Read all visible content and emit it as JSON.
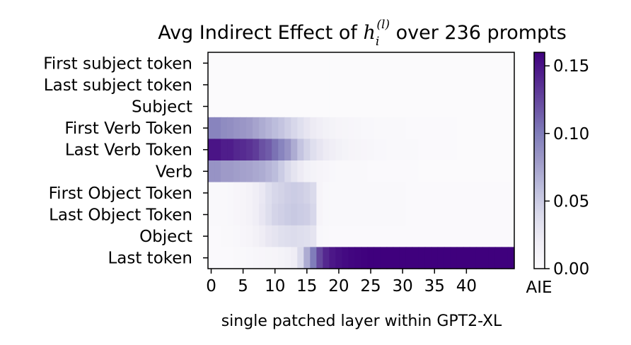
{
  "chart_data": {
    "type": "heatmap",
    "title_prefix": "Avg Indirect Effect of ",
    "title_var": "h",
    "title_sub": "i",
    "title_sup": "(l)",
    "title_suffix": " over 236 prompts",
    "xlabel": "single patched layer within GPT2-XL",
    "x_ticks": [
      0,
      5,
      10,
      15,
      20,
      25,
      30,
      35,
      40
    ],
    "x_range": [
      0,
      48
    ],
    "y_categories": [
      "First subject token",
      "Last subject token",
      "Subject",
      "First Verb Token",
      "Last Verb Token",
      "Verb",
      "First Object Token",
      "Last Object Token",
      "Object",
      "Last token"
    ],
    "colorbar": {
      "label": "AIE",
      "range": [
        0,
        0.16
      ],
      "ticks": [
        "0.00",
        "0.05",
        "0.10",
        "0.15"
      ],
      "tick_values": [
        0,
        0.05,
        0.1,
        0.15
      ],
      "colormap": "Purples",
      "color_low": "#fcfbfd",
      "color_high": "#3f007d"
    },
    "rows": [
      [
        0.002,
        0.002,
        0.002,
        0.002,
        0.002,
        0.002,
        0.002,
        0.002,
        0.002,
        0.002,
        0.002,
        0.002,
        0.002,
        0.002,
        0.002,
        0.002,
        0.002,
        0.002,
        0.002,
        0.002,
        0.002,
        0.002,
        0.002,
        0.002,
        0.002,
        0.002,
        0.002,
        0.002,
        0.002,
        0.002,
        0.002,
        0.002,
        0.002,
        0.002,
        0.002,
        0.002,
        0.002,
        0.002,
        0.002,
        0.002,
        0.002,
        0.002,
        0.002,
        0.002,
        0.002,
        0.002,
        0.002,
        0.002
      ],
      [
        0.002,
        0.002,
        0.002,
        0.002,
        0.002,
        0.002,
        0.002,
        0.002,
        0.002,
        0.002,
        0.002,
        0.002,
        0.002,
        0.002,
        0.002,
        0.002,
        0.002,
        0.002,
        0.002,
        0.002,
        0.002,
        0.002,
        0.002,
        0.002,
        0.002,
        0.002,
        0.002,
        0.002,
        0.002,
        0.002,
        0.002,
        0.002,
        0.002,
        0.002,
        0.002,
        0.002,
        0.002,
        0.002,
        0.002,
        0.002,
        0.002,
        0.002,
        0.002,
        0.002,
        0.002,
        0.002,
        0.002,
        0.002
      ],
      [
        0.002,
        0.002,
        0.002,
        0.002,
        0.002,
        0.002,
        0.002,
        0.002,
        0.002,
        0.002,
        0.002,
        0.002,
        0.002,
        0.002,
        0.002,
        0.002,
        0.002,
        0.002,
        0.002,
        0.002,
        0.002,
        0.002,
        0.002,
        0.002,
        0.002,
        0.002,
        0.002,
        0.002,
        0.002,
        0.002,
        0.002,
        0.002,
        0.002,
        0.002,
        0.002,
        0.002,
        0.002,
        0.002,
        0.002,
        0.002,
        0.002,
        0.002,
        0.002,
        0.002,
        0.002,
        0.002,
        0.002,
        0.002
      ],
      [
        0.095,
        0.095,
        0.09,
        0.088,
        0.085,
        0.083,
        0.08,
        0.075,
        0.07,
        0.065,
        0.06,
        0.055,
        0.048,
        0.042,
        0.035,
        0.028,
        0.022,
        0.018,
        0.015,
        0.012,
        0.01,
        0.009,
        0.008,
        0.007,
        0.006,
        0.006,
        0.005,
        0.005,
        0.004,
        0.004,
        0.004,
        0.003,
        0.003,
        0.003,
        0.003,
        0.003,
        0.003,
        0.003,
        0.003,
        0.002,
        0.002,
        0.002,
        0.002,
        0.002,
        0.002,
        0.002,
        0.002,
        0.002
      ],
      [
        0.15,
        0.15,
        0.145,
        0.145,
        0.14,
        0.138,
        0.135,
        0.13,
        0.12,
        0.115,
        0.105,
        0.095,
        0.085,
        0.07,
        0.055,
        0.045,
        0.035,
        0.028,
        0.022,
        0.018,
        0.015,
        0.012,
        0.01,
        0.009,
        0.008,
        0.007,
        0.006,
        0.006,
        0.005,
        0.005,
        0.004,
        0.004,
        0.004,
        0.003,
        0.003,
        0.003,
        0.003,
        0.003,
        0.003,
        0.002,
        0.002,
        0.002,
        0.002,
        0.002,
        0.002,
        0.002,
        0.002,
        0.002
      ],
      [
        0.085,
        0.085,
        0.08,
        0.08,
        0.078,
        0.076,
        0.075,
        0.072,
        0.07,
        0.065,
        0.06,
        0.05,
        0.04,
        0.03,
        0.022,
        0.015,
        0.012,
        0.01,
        0.008,
        0.006,
        0.005,
        0.005,
        0.004,
        0.004,
        0.004,
        0.003,
        0.003,
        0.003,
        0.003,
        0.003,
        0.003,
        0.003,
        0.003,
        0.002,
        0.002,
        0.002,
        0.002,
        0.002,
        0.002,
        0.002,
        0.002,
        0.002,
        0.002,
        0.002,
        0.002,
        0.002,
        0.002,
        0.002
      ],
      [
        0.004,
        0.004,
        0.005,
        0.006,
        0.008,
        0.01,
        0.013,
        0.018,
        0.025,
        0.035,
        0.042,
        0.045,
        0.048,
        0.05,
        0.048,
        0.045,
        0.04,
        0.01,
        0.006,
        0.005,
        0.005,
        0.004,
        0.004,
        0.004,
        0.004,
        0.004,
        0.004,
        0.004,
        0.004,
        0.004,
        0.004,
        0.003,
        0.003,
        0.003,
        0.003,
        0.003,
        0.003,
        0.003,
        0.003,
        0.003,
        0.003,
        0.003,
        0.003,
        0.003,
        0.003,
        0.003,
        0.003,
        0.003
      ],
      [
        0.004,
        0.004,
        0.005,
        0.006,
        0.008,
        0.01,
        0.013,
        0.018,
        0.027,
        0.036,
        0.044,
        0.047,
        0.05,
        0.052,
        0.05,
        0.048,
        0.042,
        0.01,
        0.006,
        0.005,
        0.005,
        0.004,
        0.004,
        0.004,
        0.004,
        0.004,
        0.004,
        0.004,
        0.004,
        0.004,
        0.004,
        0.003,
        0.003,
        0.003,
        0.003,
        0.003,
        0.003,
        0.003,
        0.003,
        0.003,
        0.003,
        0.003,
        0.003,
        0.003,
        0.003,
        0.003,
        0.003,
        0.003
      ],
      [
        0.003,
        0.003,
        0.004,
        0.005,
        0.006,
        0.008,
        0.01,
        0.014,
        0.02,
        0.026,
        0.03,
        0.034,
        0.036,
        0.038,
        0.036,
        0.034,
        0.03,
        0.006,
        0.004,
        0.003,
        0.003,
        0.003,
        0.003,
        0.003,
        0.003,
        0.003,
        0.003,
        0.003,
        0.003,
        0.003,
        0.003,
        0.003,
        0.003,
        0.003,
        0.003,
        0.003,
        0.003,
        0.003,
        0.003,
        0.003,
        0.003,
        0.003,
        0.003,
        0.003,
        0.003,
        0.003,
        0.003,
        0.003
      ],
      [
        0.003,
        0.003,
        0.003,
        0.003,
        0.004,
        0.005,
        0.006,
        0.007,
        0.008,
        0.009,
        0.01,
        0.012,
        0.015,
        0.02,
        0.04,
        0.07,
        0.1,
        0.125,
        0.14,
        0.148,
        0.152,
        0.155,
        0.157,
        0.158,
        0.159,
        0.16,
        0.16,
        0.16,
        0.16,
        0.16,
        0.16,
        0.16,
        0.16,
        0.16,
        0.16,
        0.16,
        0.16,
        0.16,
        0.16,
        0.16,
        0.16,
        0.16,
        0.16,
        0.16,
        0.16,
        0.16,
        0.16,
        0.16
      ]
    ]
  }
}
